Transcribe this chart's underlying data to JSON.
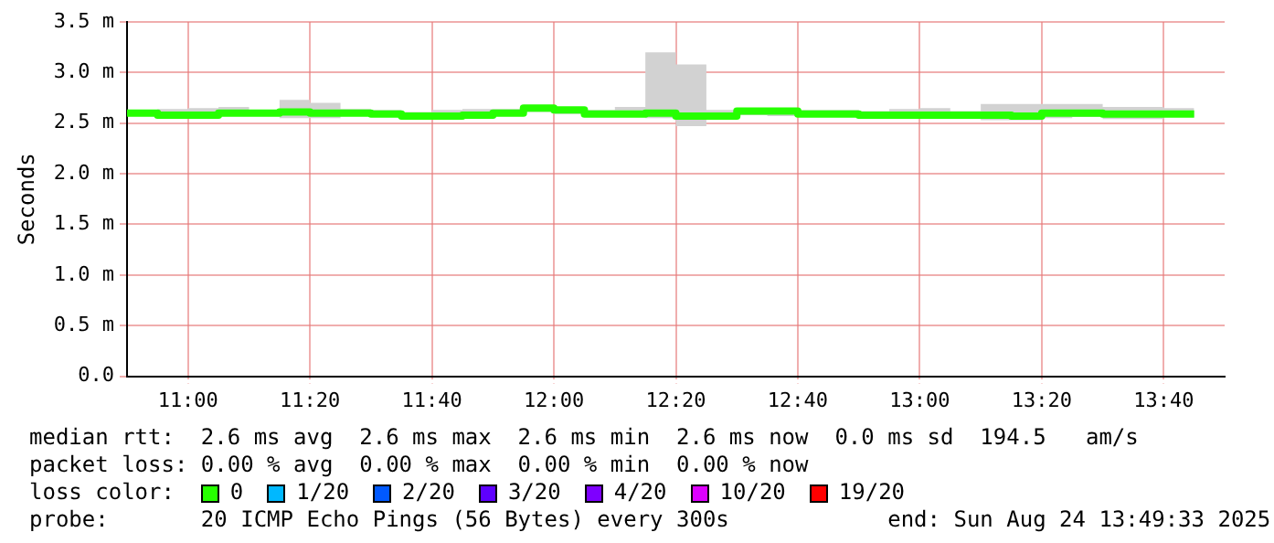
{
  "chart_data": {
    "type": "step",
    "ylabel": "Seconds",
    "legend_title": "loss color:",
    "legend": "bottom",
    "grid": true,
    "line_style": "solid",
    "marker": "none",
    "x": [
      10.8333,
      10.9167,
      11.0,
      11.0833,
      11.1667,
      11.25,
      11.3333,
      11.4167,
      11.5,
      11.5833,
      11.6667,
      11.75,
      11.8333,
      11.9167,
      12.0,
      12.0833,
      12.1667,
      12.25,
      12.3333,
      12.4167,
      12.5,
      12.5833,
      12.6667,
      12.75,
      12.8333,
      12.9167,
      13.0,
      13.0833,
      13.1667,
      13.25,
      13.3333,
      13.4167,
      13.5,
      13.5833,
      13.6667,
      13.75
    ],
    "xlim": [
      10.8333,
      13.8333
    ],
    "xticks": [
      {
        "value": 11,
        "label": "11:00"
      },
      {
        "value": 11.3333,
        "label": "11:20"
      },
      {
        "value": 11.6667,
        "label": "11:40"
      },
      {
        "value": 12,
        "label": "12:00"
      },
      {
        "value": 12.3333,
        "label": "12:20"
      },
      {
        "value": 12.6667,
        "label": "12:40"
      },
      {
        "value": 13,
        "label": "13:00"
      },
      {
        "value": 13.3333,
        "label": "13:20"
      },
      {
        "value": 13.6667,
        "label": "13:40"
      }
    ],
    "ylim": [
      0,
      3.5
    ],
    "yticks": [
      {
        "value": 0,
        "label": "0.0"
      },
      {
        "value": 0.5,
        "label": "0.5 m"
      },
      {
        "value": 1,
        "label": "1.0 m"
      },
      {
        "value": 1.5,
        "label": "1.5 m"
      },
      {
        "value": 2,
        "label": "2.0 m"
      },
      {
        "value": 2.5,
        "label": "2.5 m"
      },
      {
        "value": 3,
        "label": "3.0 m"
      },
      {
        "value": 3.5,
        "label": "3.5 m"
      }
    ],
    "series": [
      {
        "name": "0",
        "color": "#26ff00",
        "values": [
          2.6,
          2.58,
          2.58,
          2.6,
          2.6,
          2.61,
          2.6,
          2.6,
          2.59,
          2.57,
          2.57,
          2.58,
          2.6,
          2.65,
          2.63,
          2.59,
          2.59,
          2.6,
          2.57,
          2.57,
          2.62,
          2.62,
          2.59,
          2.59,
          2.58,
          2.58,
          2.58,
          2.58,
          2.58,
          2.57,
          2.6,
          2.6,
          2.59,
          2.59,
          2.59,
          2.59
        ],
        "lower": [
          2.57,
          2.55,
          2.55,
          2.57,
          2.57,
          2.55,
          2.55,
          2.57,
          2.56,
          2.54,
          2.54,
          2.55,
          2.57,
          2.61,
          2.59,
          2.56,
          2.56,
          2.55,
          2.47,
          2.54,
          2.58,
          2.57,
          2.56,
          2.56,
          2.55,
          2.55,
          2.55,
          2.55,
          2.53,
          2.53,
          2.55,
          2.56,
          2.54,
          2.54,
          2.56,
          2.56
        ],
        "upper": [
          2.63,
          2.64,
          2.65,
          2.66,
          2.63,
          2.73,
          2.7,
          2.64,
          2.63,
          2.61,
          2.63,
          2.64,
          2.64,
          2.68,
          2.66,
          2.63,
          2.66,
          3.2,
          3.08,
          2.63,
          2.65,
          2.65,
          2.63,
          2.63,
          2.62,
          2.64,
          2.65,
          2.62,
          2.69,
          2.69,
          2.69,
          2.69,
          2.66,
          2.66,
          2.65,
          2.65
        ]
      },
      {
        "name": "1/20",
        "color": "#00b8ff",
        "values": [
          null,
          null,
          null,
          null,
          null,
          null,
          null,
          null,
          null,
          null,
          null,
          null,
          null,
          null,
          null,
          null,
          null,
          null,
          null,
          null,
          null,
          null,
          null,
          null,
          null,
          null,
          null,
          null,
          null,
          null,
          null,
          null,
          null,
          null,
          null,
          null
        ]
      },
      {
        "name": "2/20",
        "color": "#0059ff",
        "values": [
          null,
          null,
          null,
          null,
          null,
          null,
          null,
          null,
          null,
          null,
          null,
          null,
          null,
          null,
          null,
          null,
          null,
          null,
          null,
          null,
          null,
          null,
          null,
          null,
          null,
          null,
          null,
          null,
          null,
          null,
          null,
          null,
          null,
          null,
          null,
          null
        ]
      },
      {
        "name": "3/20",
        "color": "#5e00ff",
        "values": [
          null,
          null,
          null,
          null,
          null,
          null,
          null,
          null,
          null,
          null,
          null,
          null,
          null,
          null,
          null,
          null,
          null,
          null,
          null,
          null,
          null,
          null,
          null,
          null,
          null,
          null,
          null,
          null,
          null,
          null,
          null,
          null,
          null,
          null,
          null,
          null
        ]
      },
      {
        "name": "4/20",
        "color": "#7e00ff",
        "values": [
          null,
          null,
          null,
          null,
          null,
          null,
          null,
          null,
          null,
          null,
          null,
          null,
          null,
          null,
          null,
          null,
          null,
          null,
          null,
          null,
          null,
          null,
          null,
          null,
          null,
          null,
          null,
          null,
          null,
          null,
          null,
          null,
          null,
          null,
          null,
          null
        ]
      },
      {
        "name": "10/20",
        "color": "#dd00ff",
        "values": [
          null,
          null,
          null,
          null,
          null,
          null,
          null,
          null,
          null,
          null,
          null,
          null,
          null,
          null,
          null,
          null,
          null,
          null,
          null,
          null,
          null,
          null,
          null,
          null,
          null,
          null,
          null,
          null,
          null,
          null,
          null,
          null,
          null,
          null,
          null,
          null
        ]
      },
      {
        "name": "19/20",
        "color": "#ff0000",
        "values": [
          null,
          null,
          null,
          null,
          null,
          null,
          null,
          null,
          null,
          null,
          null,
          null,
          null,
          null,
          null,
          null,
          null,
          null,
          null,
          null,
          null,
          null,
          null,
          null,
          null,
          null,
          null,
          null,
          null,
          null,
          null,
          null,
          null,
          null,
          null,
          null
        ]
      }
    ],
    "annotations": [
      "median rtt:  2.6 ms avg  2.6 ms max  2.6 ms min  2.6 ms now  0.0 ms sd  194.5   am/s",
      "packet loss: 0.00 % avg  0.00 % max  0.00 % min  0.00 % now",
      "probe:       20 ICMP Echo Pings (56 Bytes) every 300s            end: Sun Aug 24 13:49:33 2025"
    ]
  }
}
